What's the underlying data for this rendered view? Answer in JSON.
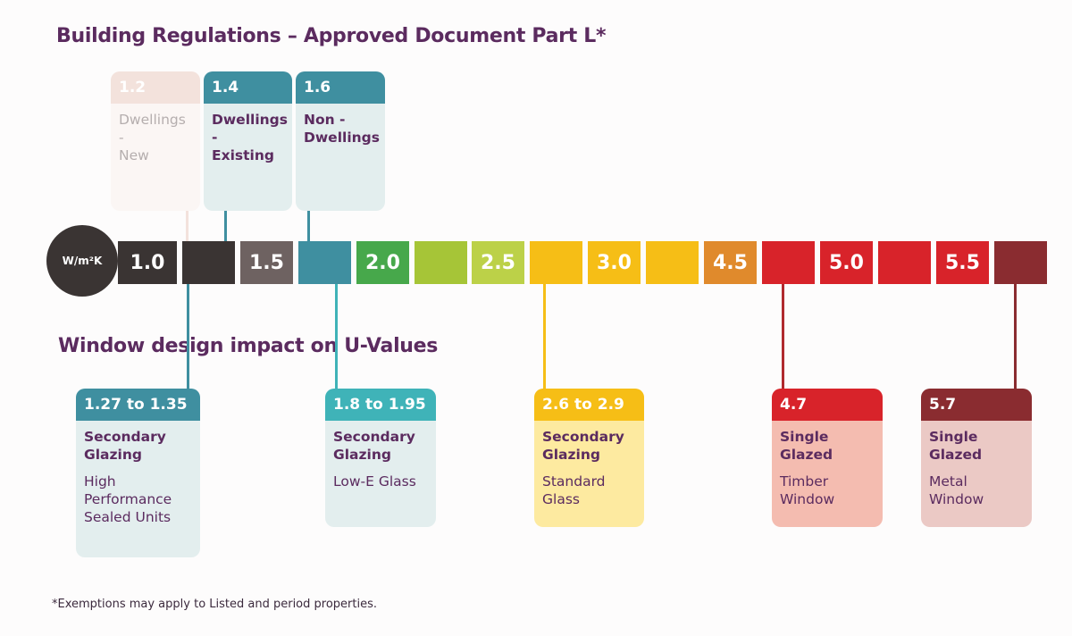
{
  "title": "Building Regulations – Approved Document Part L*",
  "subtitle": "Window design impact on U-Values",
  "footnote": "*Exemptions may apply to Listed and period properties.",
  "unit": "W/m²K",
  "scale": {
    "labels": [
      "1.0",
      "",
      "1.5",
      "",
      "2.0",
      "",
      "2.5",
      "",
      "3.0",
      "",
      "4.5",
      "",
      "5.0",
      "",
      "5.5",
      ""
    ],
    "colors": [
      "#3a3433",
      "#3a3433",
      "#6e6261",
      "#3f8fa0",
      "#47a84b",
      "#a6c537",
      "#bcd148",
      "#f6be16",
      "#f6be16",
      "#f6be16",
      "#e08a2c",
      "#d8232a",
      "#d8232a",
      "#d8232a",
      "#d8232a",
      "#8a2c30"
    ]
  },
  "regulations": [
    {
      "value": "1.2",
      "line1": "Dwellings -",
      "line2": "New",
      "faded": true
    },
    {
      "value": "1.4",
      "line1": "Dwellings -",
      "line2": "Existing",
      "faded": false
    },
    {
      "value": "1.6",
      "line1": "Non -",
      "line2": "Dwellings",
      "faded": false
    }
  ],
  "designs": [
    {
      "value": "1.27 to 1.35",
      "type1": "Secondary",
      "type2": "Glazing",
      "desc": [
        "High",
        "Performance",
        "Sealed Units"
      ],
      "head_color": "#3f8fa0",
      "body_color": "#e3eeee"
    },
    {
      "value": "1.8 to 1.95",
      "type1": "Secondary",
      "type2": "Glazing",
      "desc": [
        "Low-E Glass"
      ],
      "head_color": "#3fb3b8",
      "body_color": "#e3eeee"
    },
    {
      "value": "2.6 to 2.9",
      "type1": "Secondary",
      "type2": "Glazing",
      "desc": [
        "Standard",
        "Glass"
      ],
      "head_color": "#f6be16",
      "body_color": "#fdeaa0"
    },
    {
      "value": "4.7",
      "type1": "Single",
      "type2": "Glazed",
      "desc": [
        "Timber",
        "Window"
      ],
      "head_color": "#d8232a",
      "body_color": "#f4bcb0"
    },
    {
      "value": "5.7",
      "type1": "Single",
      "type2": "Glazed",
      "desc": [
        "Metal",
        "Window"
      ],
      "head_color": "#8a2c30",
      "body_color": "#ebc9c5"
    }
  ]
}
